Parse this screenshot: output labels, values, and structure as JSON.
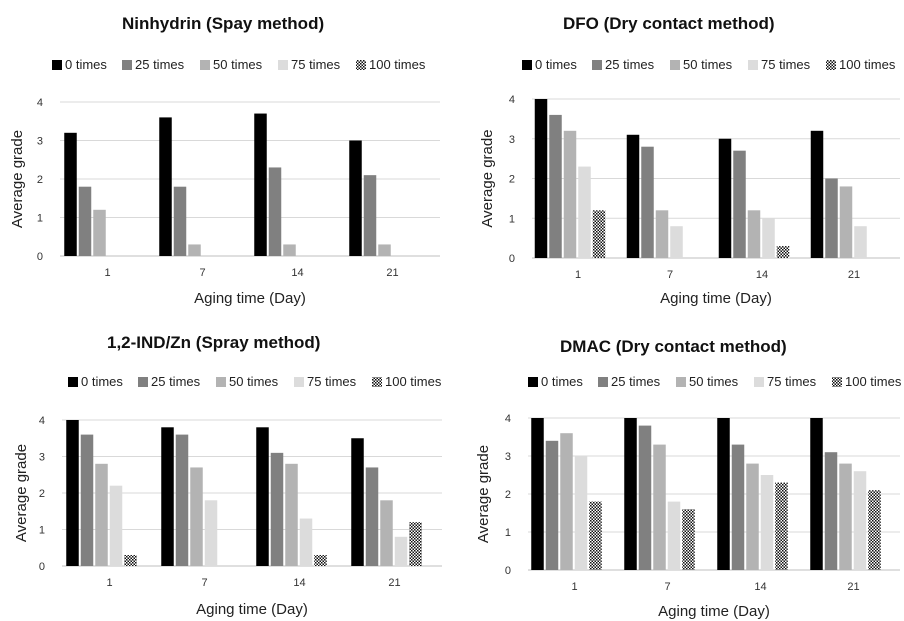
{
  "legend_entries": [
    "0 times",
    "25 times",
    "50 times",
    "75 times",
    "100 times"
  ],
  "chart_data": [
    {
      "type": "bar",
      "title": "Ninhydrin (Spay method)",
      "xlabel": "Aging time (Day)",
      "ylabel": "Average grade",
      "categories": [
        "1",
        "7",
        "14",
        "21"
      ],
      "ylim": [
        0,
        4
      ],
      "yticks": [
        "0",
        "1",
        "2",
        "3",
        "4"
      ],
      "grid": true,
      "legend": "top",
      "series": [
        {
          "name": "0 times",
          "color": "#000000",
          "pattern": false,
          "values": [
            3.2,
            3.6,
            3.7,
            3.0
          ]
        },
        {
          "name": "25 times",
          "color": "#808080",
          "pattern": false,
          "values": [
            1.8,
            1.8,
            2.3,
            2.1
          ]
        },
        {
          "name": "50 times",
          "color": "#b3b3b3",
          "pattern": false,
          "values": [
            1.2,
            0.3,
            0.3,
            0.3
          ]
        },
        {
          "name": "75 times",
          "color": "#dcdcdc",
          "pattern": false,
          "values": [
            0,
            0,
            0,
            0
          ]
        },
        {
          "name": "100 times",
          "color": "#2a2a2a",
          "pattern": true,
          "values": [
            0,
            0,
            0,
            0
          ]
        }
      ]
    },
    {
      "type": "bar",
      "title": "DFO (Dry contact method)",
      "xlabel": "Aging time (Day)",
      "ylabel": "Average grade",
      "categories": [
        "1",
        "7",
        "14",
        "21"
      ],
      "ylim": [
        0,
        4
      ],
      "yticks": [
        "0",
        "1",
        "2",
        "3",
        "4"
      ],
      "grid": true,
      "legend": "top",
      "series": [
        {
          "name": "0 times",
          "color": "#000000",
          "pattern": false,
          "values": [
            4.0,
            3.1,
            3.0,
            3.2
          ]
        },
        {
          "name": "25 times",
          "color": "#808080",
          "pattern": false,
          "values": [
            3.6,
            2.8,
            2.7,
            2.0
          ]
        },
        {
          "name": "50 times",
          "color": "#b3b3b3",
          "pattern": false,
          "values": [
            3.2,
            1.2,
            1.2,
            1.8
          ]
        },
        {
          "name": "75 times",
          "color": "#dcdcdc",
          "pattern": false,
          "values": [
            2.3,
            0.8,
            1.0,
            0.8
          ]
        },
        {
          "name": "100 times",
          "color": "#2a2a2a",
          "pattern": true,
          "values": [
            1.2,
            0,
            0.3,
            0
          ]
        }
      ]
    },
    {
      "type": "bar",
      "title": "1,2-IND/Zn (Spray method)",
      "xlabel": "Aging time (Day)",
      "ylabel": "Average grade",
      "categories": [
        "1",
        "7",
        "14",
        "21"
      ],
      "ylim": [
        0,
        4
      ],
      "yticks": [
        "0",
        "1",
        "2",
        "3",
        "4"
      ],
      "grid": true,
      "legend": "top",
      "series": [
        {
          "name": "0 times",
          "color": "#000000",
          "pattern": false,
          "values": [
            4.0,
            3.8,
            3.8,
            3.5
          ]
        },
        {
          "name": "25 times",
          "color": "#808080",
          "pattern": false,
          "values": [
            3.6,
            3.6,
            3.1,
            2.7
          ]
        },
        {
          "name": "50 times",
          "color": "#b3b3b3",
          "pattern": false,
          "values": [
            2.8,
            2.7,
            2.8,
            1.8
          ]
        },
        {
          "name": "75 times",
          "color": "#dcdcdc",
          "pattern": false,
          "values": [
            2.2,
            1.8,
            1.3,
            0.8
          ]
        },
        {
          "name": "100 times",
          "color": "#2a2a2a",
          "pattern": true,
          "values": [
            0.3,
            0,
            0.3,
            1.2
          ]
        }
      ]
    },
    {
      "type": "bar",
      "title": "DMAC (Dry contact method)",
      "xlabel": "Aging time (Day)",
      "ylabel": "Average grade",
      "categories": [
        "1",
        "7",
        "14",
        "21"
      ],
      "ylim": [
        0,
        4
      ],
      "yticks": [
        "0",
        "1",
        "2",
        "3",
        "4"
      ],
      "grid": true,
      "legend": "top",
      "series": [
        {
          "name": "0 times",
          "color": "#000000",
          "pattern": false,
          "values": [
            4.0,
            4.0,
            4.0,
            4.0
          ]
        },
        {
          "name": "25 times",
          "color": "#808080",
          "pattern": false,
          "values": [
            3.4,
            3.8,
            3.3,
            3.1
          ]
        },
        {
          "name": "50 times",
          "color": "#b3b3b3",
          "pattern": false,
          "values": [
            3.6,
            3.3,
            2.8,
            2.8
          ]
        },
        {
          "name": "75 times",
          "color": "#dcdcdc",
          "pattern": false,
          "values": [
            3.0,
            1.8,
            2.5,
            2.6
          ]
        },
        {
          "name": "100 times",
          "color": "#2a2a2a",
          "pattern": true,
          "values": [
            1.8,
            1.6,
            2.3,
            2.1
          ]
        }
      ]
    }
  ]
}
